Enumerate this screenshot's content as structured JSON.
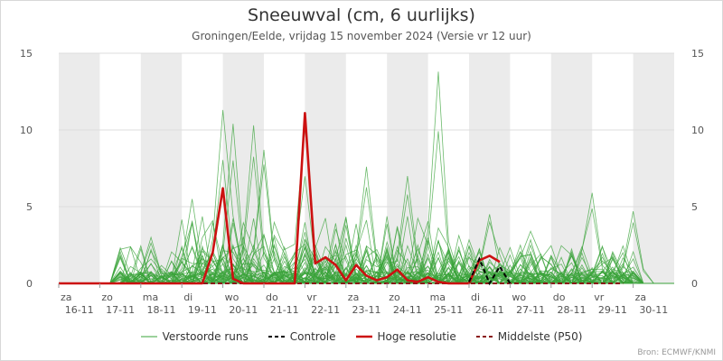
{
  "title": "Sneeuwval (cm, 6 uurlijks)",
  "subtitle": "Groningen/Eelde, vrijdag 15 november 2024 (Versie vr 12 uur)",
  "source": "Bron: ECMWF/KNMI",
  "colors": {
    "ensemble": "#3aa33a",
    "control": "#000000",
    "hires": "#cc1111",
    "median": "#8b1a1a",
    "band": "#ebebeb"
  },
  "legend": [
    {
      "key": "ensemble",
      "label": "Verstoorde runs",
      "style": "solid-thin"
    },
    {
      "key": "control",
      "label": "Controle",
      "style": "dashed"
    },
    {
      "key": "hires",
      "label": "Hoge resolutie",
      "style": "solid-thick"
    },
    {
      "key": "median",
      "label": "Middelste (P50)",
      "style": "dashed"
    }
  ],
  "chart_data": {
    "type": "line",
    "title": "Sneeuwval (cm, 6 uurlijks)",
    "ylim": [
      0,
      15
    ],
    "yticks": [
      0,
      5,
      10,
      15
    ],
    "xlim": [
      "2024-11-16T00",
      "2024-12-01T00"
    ],
    "x_resolution_hours": 6,
    "grid": "alternating day bands",
    "legend_position": "bottom",
    "days": [
      {
        "name": "za",
        "date": "16-11"
      },
      {
        "name": "zo",
        "date": "17-11"
      },
      {
        "name": "ma",
        "date": "18-11"
      },
      {
        "name": "di",
        "date": "19-11"
      },
      {
        "name": "wo",
        "date": "20-11"
      },
      {
        "name": "do",
        "date": "21-11"
      },
      {
        "name": "vr",
        "date": "22-11"
      },
      {
        "name": "za",
        "date": "23-11"
      },
      {
        "name": "zo",
        "date": "24-11"
      },
      {
        "name": "ma",
        "date": "25-11"
      },
      {
        "name": "di",
        "date": "26-11"
      },
      {
        "name": "wo",
        "date": "27-11"
      },
      {
        "name": "do",
        "date": "28-11"
      },
      {
        "name": "vr",
        "date": "29-11"
      },
      {
        "name": "za",
        "date": "30-11"
      }
    ],
    "hires": {
      "name": "Hoge resolutie",
      "start": "2024-11-16T00",
      "values": [
        0,
        0,
        0,
        0,
        0,
        0,
        0,
        0,
        0,
        0,
        0,
        0,
        0,
        0,
        0,
        2,
        6.2,
        0.3,
        0,
        0,
        0,
        0,
        0,
        0,
        11.1,
        1.3,
        1.7,
        1.2,
        0.2,
        1.2,
        0.5,
        0.2,
        0.4,
        0.9,
        0.2,
        0.1,
        0.4,
        0.1,
        0,
        0,
        0,
        1.5,
        1.8,
        1.4
      ]
    },
    "control": {
      "name": "Controle",
      "start": "2024-11-26T00",
      "values": [
        0.1,
        1.6,
        0,
        1.1,
        0
      ]
    },
    "median": {
      "name": "Middelste (P50)",
      "start": "2024-11-16T00",
      "values": [
        0,
        0,
        0,
        0,
        0,
        0,
        0,
        0,
        0,
        0,
        0,
        0,
        0,
        0,
        0,
        0,
        0,
        0,
        0,
        0,
        0,
        0,
        0,
        0,
        0,
        0,
        0,
        0,
        0,
        0,
        0,
        0,
        0,
        0,
        0,
        0,
        0,
        0,
        0,
        0,
        0,
        0,
        0,
        0,
        0,
        0,
        0,
        0,
        0,
        0,
        0,
        0,
        0,
        0,
        0,
        0
      ]
    },
    "ensemble_peaks": [
      {
        "time": "2024-11-18T06",
        "value": 3.0
      },
      {
        "time": "2024-11-19T06",
        "value": 5.5
      },
      {
        "time": "2024-11-20T00",
        "value": 11.3
      },
      {
        "time": "2024-11-20T06",
        "value": 10.4
      },
      {
        "time": "2024-11-20T18",
        "value": 10.3
      },
      {
        "time": "2024-11-21T00",
        "value": 8.7
      },
      {
        "time": "2024-11-22T00",
        "value": 10.2
      },
      {
        "time": "2024-11-23T12",
        "value": 7.6
      },
      {
        "time": "2024-11-24T12",
        "value": 7.0
      },
      {
        "time": "2024-11-25T06",
        "value": 13.8
      },
      {
        "time": "2024-11-26T12",
        "value": 4.5
      },
      {
        "time": "2024-11-27T12",
        "value": 3.4
      },
      {
        "time": "2024-11-29T00",
        "value": 5.9
      },
      {
        "time": "2024-11-30T00",
        "value": 4.7
      }
    ]
  }
}
